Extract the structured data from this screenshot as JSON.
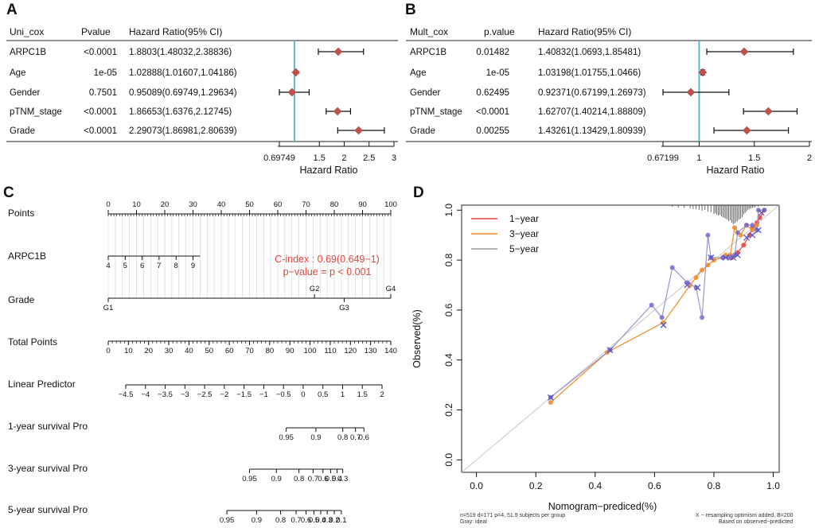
{
  "colors": {
    "diamond": "#c1524a",
    "refline": "#5bbdcc",
    "red": "#e8453c",
    "orange": "#f08a24",
    "gray": "#999999",
    "blue": "#5555cc",
    "purple": "#7b68c8"
  },
  "panels": [
    {
      "letter": "A",
      "headers": {
        "name": "Uni_cox",
        "p": "Pvalue",
        "hr": "Hazard Ratio(95% CI)"
      },
      "rows": [
        {
          "name": "ARPC1B",
          "p": "<0.0001",
          "hr_text": "1.8803(1.48032,2.38836)",
          "hr": 1.8803,
          "lo": 1.48032,
          "hi": 2.38836
        },
        {
          "name": "Age",
          "p": "1e-05",
          "hr_text": "1.02888(1.01607,1.04186)",
          "hr": 1.02888,
          "lo": 1.01607,
          "hi": 1.04186
        },
        {
          "name": "Gender",
          "p": "0.7501",
          "hr_text": "0.95089(0.69749,1.29634)",
          "hr": 0.95089,
          "lo": 0.69749,
          "hi": 1.29634
        },
        {
          "name": "pTNM_stage",
          "p": "<0.0001",
          "hr_text": "1.86653(1.6376,2.12745)",
          "hr": 1.86653,
          "lo": 1.6376,
          "hi": 2.12745
        },
        {
          "name": "Grade",
          "p": "<0.0001",
          "hr_text": "2.29073(1.86981,2.80639)",
          "hr": 2.29073,
          "lo": 1.86981,
          "hi": 2.80639
        }
      ],
      "axis": {
        "ticks": [
          "0.69749",
          "1.5",
          "2",
          "2.5",
          "3"
        ],
        "tick_values": [
          0.69749,
          1.5,
          2,
          2.5,
          3
        ],
        "min": 0.69749,
        "max": 3,
        "ref": 1,
        "label": "Hazard Ratio"
      }
    },
    {
      "letter": "B",
      "headers": {
        "name": "Mult_cox",
        "p": "p.value",
        "hr": "Hazard Ratio(95% CI)"
      },
      "rows": [
        {
          "name": "ARPC1B",
          "p": "0.01482",
          "hr_text": "1.40832(1.0693,1.85481)",
          "hr": 1.40832,
          "lo": 1.0693,
          "hi": 1.85481
        },
        {
          "name": "Age",
          "p": "1e-05",
          "hr_text": "1.03198(1.01755,1.0466)",
          "hr": 1.03198,
          "lo": 1.01755,
          "hi": 1.0466
        },
        {
          "name": "Gender",
          "p": "0.62495",
          "hr_text": "0.92371(0.67199,1.26973)",
          "hr": 0.92371,
          "lo": 0.67199,
          "hi": 1.26973
        },
        {
          "name": "pTNM_stage",
          "p": "<0.0001",
          "hr_text": "1.62707(1.40214,1.88809)",
          "hr": 1.62707,
          "lo": 1.40214,
          "hi": 1.88809
        },
        {
          "name": "Grade",
          "p": "0.00255",
          "hr_text": "1.43261(1.13429,1.80939)",
          "hr": 1.43261,
          "lo": 1.13429,
          "hi": 1.80939
        }
      ],
      "axis": {
        "ticks": [
          "0.67199",
          "1",
          "1.5",
          "2"
        ],
        "tick_values": [
          0.67199,
          1,
          1.5,
          2
        ],
        "min": 0.67199,
        "max": 2,
        "ref": 1,
        "label": "Hazard Ratio"
      }
    }
  ],
  "nomogram": {
    "letter": "C",
    "cindex": "C-index : 0.69(0.649−1)",
    "pvalue": "p−value = p < 0.001",
    "rows": [
      {
        "label": "Points",
        "scale_min": 0,
        "scale_max": 100,
        "ticks": [
          {
            "v": 0,
            "t": "0"
          },
          {
            "v": 10,
            "t": "10"
          },
          {
            "v": 20,
            "t": "20"
          },
          {
            "v": 30,
            "t": "30"
          },
          {
            "v": 40,
            "t": "40"
          },
          {
            "v": 50,
            "t": "50"
          },
          {
            "v": 60,
            "t": "60"
          },
          {
            "v": 70,
            "t": "70"
          },
          {
            "v": 80,
            "t": "80"
          },
          {
            "v": 90,
            "t": "90"
          },
          {
            "v": 100,
            "t": "100"
          }
        ],
        "minor": 1,
        "label_side": "above"
      },
      {
        "label": "ARPC1B",
        "scale_min": 0,
        "scale_max": 100,
        "ticks": [
          {
            "v": 0,
            "t": "4"
          },
          {
            "v": 6,
            "t": "5"
          },
          {
            "v": 12,
            "t": "6"
          },
          {
            "v": 18,
            "t": "7"
          },
          {
            "v": 24,
            "t": "8"
          },
          {
            "v": 30,
            "t": "9"
          }
        ],
        "range": [
          0,
          32.5
        ],
        "minor": 0,
        "label_side": "below"
      },
      {
        "label": "Grade",
        "scale_min": 0,
        "scale_max": 100,
        "ticks": [
          {
            "v": 0,
            "t": "G1",
            "side": "below"
          },
          {
            "v": 73,
            "t": "G2",
            "side": "above"
          },
          {
            "v": 83.5,
            "t": "G3",
            "side": "below"
          },
          {
            "v": 100,
            "t": "G4",
            "side": "above"
          }
        ],
        "range": [
          0,
          100
        ],
        "minor": 0,
        "label_side": "mixed"
      },
      {
        "label": "Total Points",
        "scale_min": 0,
        "scale_max": 140,
        "ticks": [
          {
            "v": 0,
            "t": "0"
          },
          {
            "v": 10,
            "t": "10"
          },
          {
            "v": 20,
            "t": "20"
          },
          {
            "v": 30,
            "t": "30"
          },
          {
            "v": 40,
            "t": "40"
          },
          {
            "v": 50,
            "t": "50"
          },
          {
            "v": 60,
            "t": "60"
          },
          {
            "v": 70,
            "t": "70"
          },
          {
            "v": 80,
            "t": "80"
          },
          {
            "v": 90,
            "t": "90"
          },
          {
            "v": 100,
            "t": "100"
          },
          {
            "v": 110,
            "t": "110"
          },
          {
            "v": 120,
            "t": "120"
          },
          {
            "v": 130,
            "t": "130"
          },
          {
            "v": 140,
            "t": "140"
          }
        ],
        "minor": 2,
        "label_side": "below"
      },
      {
        "label": "Linear Predictor",
        "scale_min": -5.3,
        "scale_max": 2.2,
        "ticks": [
          {
            "v": -4.5,
            "t": "−4.5"
          },
          {
            "v": -4,
            "t": "−4"
          },
          {
            "v": -3.5,
            "t": "−3.5"
          },
          {
            "v": -3,
            "t": "−3"
          },
          {
            "v": -2.5,
            "t": "−2.5"
          },
          {
            "v": -2,
            "t": "−2"
          },
          {
            "v": -1.5,
            "t": "−1.5"
          },
          {
            "v": -1,
            "t": "−1"
          },
          {
            "v": -0.5,
            "t": "−0.5"
          },
          {
            "v": 0,
            "t": "0"
          },
          {
            "v": 0.5,
            "t": "0.5"
          },
          {
            "v": 1,
            "t": "1"
          },
          {
            "v": 1.5,
            "t": "1.5"
          },
          {
            "v": 2,
            "t": "2"
          }
        ],
        "range": [
          -4.5,
          2
        ],
        "minor": 0,
        "label_side": "below"
      },
      {
        "label": "1-year survival Pro",
        "scale_min": 0,
        "scale_max": 100,
        "ticks": [
          {
            "v": 63,
            "t": "0.95"
          },
          {
            "v": 73.5,
            "t": "0.9"
          },
          {
            "v": 83,
            "t": "0.8"
          },
          {
            "v": 87.5,
            "t": "0.7"
          },
          {
            "v": 90.5,
            "t": "0.6"
          }
        ],
        "range": [
          63,
          90.5
        ],
        "minor": 0,
        "label_side": "below"
      },
      {
        "label": "3-year survival Pro",
        "scale_min": 0,
        "scale_max": 100,
        "ticks": [
          {
            "v": 50,
            "t": "0.95"
          },
          {
            "v": 59.5,
            "t": "0.9"
          },
          {
            "v": 67.5,
            "t": "0.8"
          },
          {
            "v": 72.5,
            "t": "0.7"
          },
          {
            "v": 76,
            "t": "0.6"
          },
          {
            "v": 78.7,
            "t": "0.5"
          },
          {
            "v": 81,
            "t": "0.4"
          },
          {
            "v": 83,
            "t": "0.3"
          }
        ],
        "range": [
          50,
          83
        ],
        "minor": 0,
        "label_side": "below"
      },
      {
        "label": "5-year survival Pro",
        "scale_min": 0,
        "scale_max": 100,
        "ticks": [
          {
            "v": 42,
            "t": "0.95"
          },
          {
            "v": 52.5,
            "t": "0.9"
          },
          {
            "v": 61,
            "t": "0.8"
          },
          {
            "v": 66.5,
            "t": "0.7"
          },
          {
            "v": 70,
            "t": "0.6"
          },
          {
            "v": 72.8,
            "t": "0.5"
          },
          {
            "v": 75.2,
            "t": "0.4"
          },
          {
            "v": 77.5,
            "t": "0.3"
          },
          {
            "v": 80,
            "t": "0.2"
          },
          {
            "v": 82.5,
            "t": "0.1"
          }
        ],
        "range": [
          42,
          82.5
        ],
        "minor": 0,
        "label_side": "below"
      }
    ]
  },
  "chart_data": {
    "type": "line",
    "title": "",
    "xlabel": "Nomogram−prediced(%)",
    "ylabel": "Observed(%)",
    "xlim": [
      -0.05,
      1.02
    ],
    "ylim": [
      -0.05,
      1.02
    ],
    "xticks": [
      "0.0",
      "0.2",
      "0.4",
      "0.6",
      "0.8",
      "1.0"
    ],
    "yticks": [
      "0.0",
      "0.2",
      "0.4",
      "0.6",
      "0.8",
      "1.0"
    ],
    "legend": [
      "1−year",
      "3−year",
      "5−year"
    ],
    "note_left_1": "n=519 d=171 p=4, 51.9 subjects per group",
    "note_left_2": "Gray: ideal",
    "note_right_1": "X − resampling optimism added, B=200",
    "note_right_2": "Based on observed−predicted",
    "series": [
      {
        "name": "1−year",
        "x": [
          0.86,
          0.88,
          0.9,
          0.92,
          0.93,
          0.945,
          0.955,
          0.97
        ],
        "y": [
          0.81,
          0.83,
          0.86,
          0.9,
          0.93,
          0.95,
          0.97,
          1.0
        ]
      },
      {
        "name": "3−year",
        "x": [
          0.25,
          0.44,
          0.63,
          0.72,
          0.74,
          0.76,
          0.78,
          0.8,
          0.83,
          0.84,
          0.855,
          0.87,
          0.89,
          0.91,
          0.93,
          0.945
        ],
        "y": [
          0.23,
          0.43,
          0.55,
          0.7,
          0.73,
          0.76,
          0.78,
          0.8,
          0.81,
          0.82,
          0.82,
          0.93,
          0.9,
          0.94,
          0.92,
          0.94
        ]
      },
      {
        "name": "5−year",
        "x": [
          0.25,
          0.45,
          0.59,
          0.625,
          0.66,
          0.71,
          0.74,
          0.76,
          0.78,
          0.79,
          0.83,
          0.85,
          0.87,
          0.88,
          0.91,
          0.93,
          0.945,
          0.95,
          0.97
        ],
        "y": [
          0.25,
          0.44,
          0.62,
          0.57,
          0.77,
          0.71,
          0.69,
          0.57,
          0.9,
          0.81,
          0.81,
          0.81,
          0.82,
          0.91,
          0.94,
          0.94,
          0.92,
          1.0,
          1.0
        ]
      }
    ],
    "crosses": {
      "x": [
        0.25,
        0.45,
        0.63,
        0.71,
        0.745,
        0.79,
        0.84,
        0.865,
        0.88,
        0.91,
        0.93,
        0.95,
        0.96
      ],
      "y": [
        0.25,
        0.44,
        0.54,
        0.7,
        0.69,
        0.81,
        0.81,
        0.81,
        0.82,
        0.89,
        0.9,
        0.92,
        0.99
      ]
    },
    "rug": {
      "x": [
        0.66,
        0.68,
        0.7,
        0.72,
        0.73,
        0.74,
        0.75,
        0.76,
        0.77,
        0.78,
        0.79,
        0.8,
        0.805,
        0.81,
        0.815,
        0.82,
        0.825,
        0.83,
        0.835,
        0.84,
        0.845,
        0.85,
        0.855,
        0.86,
        0.865,
        0.87,
        0.875,
        0.88,
        0.885,
        0.89,
        0.895,
        0.9,
        0.905,
        0.91,
        0.915,
        0.92,
        0.925,
        0.93,
        0.935,
        0.94,
        0.95,
        0.96,
        0.97
      ],
      "h": [
        2,
        3,
        3,
        4,
        5,
        5,
        6,
        7,
        6,
        8,
        9,
        11,
        10,
        12,
        13,
        12,
        14,
        15,
        16,
        17,
        18,
        20,
        19,
        22,
        24,
        23,
        21,
        20,
        18,
        17,
        15,
        12,
        10,
        8,
        6,
        5,
        4,
        3,
        3,
        2,
        2,
        1,
        1
      ]
    }
  }
}
